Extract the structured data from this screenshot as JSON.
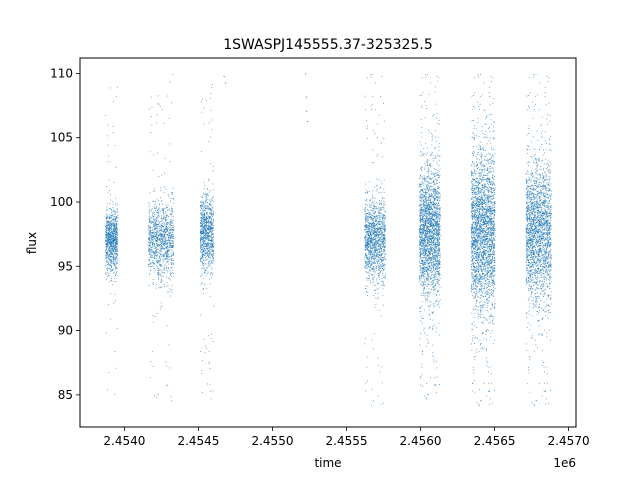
{
  "chart_data": {
    "type": "scatter",
    "title": "1SWASPJ145555.37-325325.5",
    "xlabel": "time",
    "ylabel": "flux",
    "x_offset_label": "1e6",
    "xlim": [
      2453700,
      2457050
    ],
    "ylim": [
      82.5,
      111.2
    ],
    "x_ticks": [
      2453900,
      2454200,
      2454500,
      2454800,
      2455100,
      2455400,
      2455700,
      2456000,
      2456300,
      2456600,
      2456900
    ],
    "x_tick_labels": [
      "2.4540",
      "2.4545",
      "2.4550",
      "2.4555",
      "2.4560",
      "2.4565",
      "2.4570"
    ],
    "x_tick_label_values": [
      2454000,
      2454500,
      2455000,
      2455500,
      2456000,
      2456500,
      2457000
    ],
    "y_ticks": [
      85,
      90,
      95,
      100,
      105,
      110
    ],
    "y_tick_labels": [
      "85",
      "90",
      "95",
      "100",
      "105",
      "110"
    ],
    "marker_color": "#1f77b4",
    "grid": false,
    "segments": [
      {
        "start": 2453870,
        "end": 2453950,
        "center": 97.0,
        "spread": 1.2,
        "outlier_low": 84.5,
        "outlier_high": 110.0,
        "density": 900
      },
      {
        "start": 2454160,
        "end": 2454330,
        "center": 97.0,
        "spread": 1.5,
        "outlier_low": 84.5,
        "outlier_high": 110.0,
        "density": 1100
      },
      {
        "start": 2454510,
        "end": 2454600,
        "center": 97.5,
        "spread": 1.5,
        "outlier_low": 84.0,
        "outlier_high": 109.5,
        "density": 900
      },
      {
        "start": 2455620,
        "end": 2455760,
        "center": 97.0,
        "spread": 1.6,
        "outlier_low": 84.0,
        "outlier_high": 110.0,
        "density": 1300
      },
      {
        "start": 2455990,
        "end": 2456130,
        "center": 97.5,
        "spread": 2.6,
        "outlier_low": 84.5,
        "outlier_high": 110.0,
        "density": 2200
      },
      {
        "start": 2456340,
        "end": 2456500,
        "center": 97.5,
        "spread": 3.2,
        "outlier_low": 84.0,
        "outlier_high": 110.0,
        "density": 2600
      },
      {
        "start": 2456710,
        "end": 2456880,
        "center": 97.5,
        "spread": 2.8,
        "outlier_low": 84.0,
        "outlier_high": 110.0,
        "density": 2200
      }
    ],
    "sparse_points": [
      {
        "x": 2454670,
        "y": 109.8
      },
      {
        "x": 2454680,
        "y": 109.3
      },
      {
        "x": 2455220,
        "y": 110.0
      },
      {
        "x": 2455225,
        "y": 108.2
      },
      {
        "x": 2455228,
        "y": 107.1
      },
      {
        "x": 2455232,
        "y": 106.3
      }
    ]
  }
}
